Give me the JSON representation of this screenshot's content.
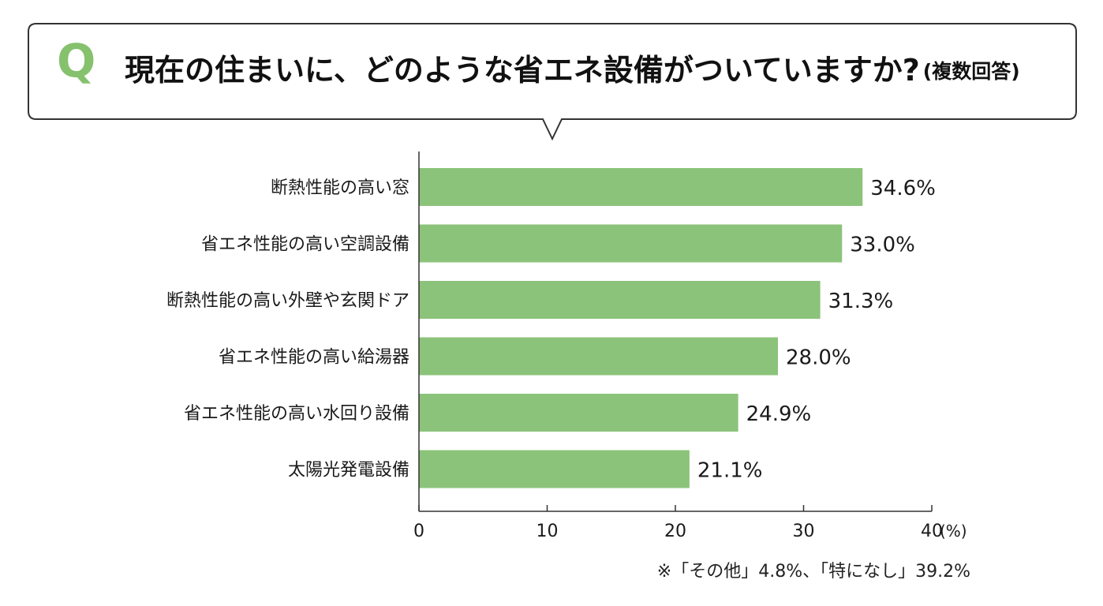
{
  "header": {
    "q_label": "Q",
    "question": "現在の住まいに、どのような省エネ設備がついていますか?",
    "note": "(複数回答)"
  },
  "colors": {
    "bar": "#8bc37a",
    "q_mark": "#86c16e",
    "axis": "#333333"
  },
  "chart_data": {
    "type": "bar",
    "orientation": "horizontal",
    "categories": [
      "断熱性能の高い窓",
      "省エネ性能の高い空調設備",
      "断熱性能の高い外壁や玄関ドア",
      "省エネ性能の高い給湯器",
      "省エネ性能の高い水回り設備",
      "太陽光発電設備"
    ],
    "values": [
      34.6,
      33.0,
      31.3,
      28.0,
      24.9,
      21.1
    ],
    "value_labels": [
      "34.6%",
      "33.0%",
      "31.3%",
      "28.0%",
      "24.9%",
      "21.1%"
    ],
    "xlim": [
      0,
      40
    ],
    "xticks": [
      0,
      10,
      20,
      30,
      40
    ],
    "xunit": "(%)",
    "grid": false
  },
  "footnote": "※「その他」4.8%、「特になし」39.2%"
}
